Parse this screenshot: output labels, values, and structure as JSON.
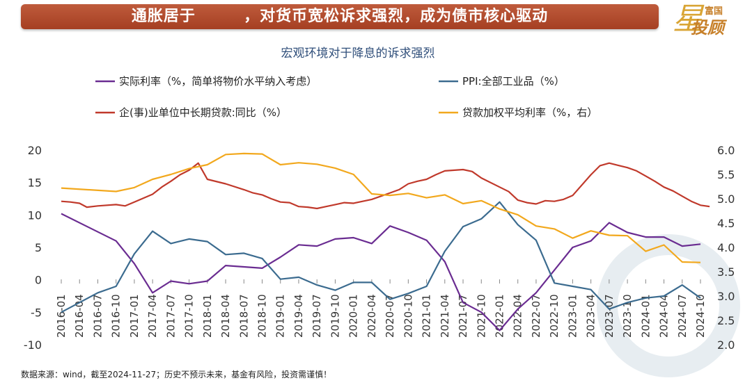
{
  "banner": {
    "title": "通胀居于        ，对货币宽松诉求强烈，成为债市核心驱动"
  },
  "logo": {
    "top": "富国",
    "bottom": "投顾",
    "star": "星"
  },
  "chart_data": {
    "type": "line",
    "title": "宏观环境对于降息的诉求强烈",
    "x_labels": [
      "2016-01",
      "2016-04",
      "2016-07",
      "2016-10",
      "2017-01",
      "2017-04",
      "2017-07",
      "2017-10",
      "2018-01",
      "2018-04",
      "2018-07",
      "2018-10",
      "2019-01",
      "2019-04",
      "2019-07",
      "2019-10",
      "2020-01",
      "2020-04",
      "2020-07",
      "2020-10",
      "2021-01",
      "2021-04",
      "2021-07",
      "2021-10",
      "2022-01",
      "2022-04",
      "2022-07",
      "2022-10",
      "2023-01",
      "2023-04",
      "2023-07",
      "2023-10",
      "2024-01",
      "2024-04",
      "2024-07",
      "2024-10"
    ],
    "left_axis": {
      "ylim": [
        -10,
        20
      ],
      "ticks": [
        "-10",
        "-5",
        "0",
        "5",
        "10",
        "15",
        "20"
      ]
    },
    "right_axis": {
      "ylim": [
        2.0,
        6.0
      ],
      "ticks": [
        "2.0",
        "2.5",
        "3.0",
        "3.5",
        "4.0",
        "4.5",
        "5.0",
        "5.5",
        "6.0"
      ]
    },
    "legend": [
      {
        "label": "实际利率（%，简单将物价水平纳入考虑）",
        "color": "#6a2c91"
      },
      {
        "label": "PPI:全部工业品（%）",
        "color": "#3b6b8f"
      },
      {
        "label": "企(事)业单位中长期贷款:同比（%）",
        "color": "#c0392b"
      },
      {
        "label": "贷款加权平均利率（%，右）",
        "color": "#f2a81d"
      }
    ],
    "series": [
      {
        "name": "实际利率（%，简单将物价水平纳入考虑）",
        "axis": "left",
        "color": "#6a2c91",
        "points": [
          [
            0,
            10.2
          ],
          [
            3,
            6.0
          ],
          [
            4,
            2.5
          ],
          [
            5,
            -2.0
          ],
          [
            6,
            -0.2
          ],
          [
            7,
            -0.6
          ],
          [
            8,
            -0.2
          ],
          [
            9,
            2.2
          ],
          [
            10,
            2.0
          ],
          [
            11,
            1.8
          ],
          [
            12,
            3.5
          ],
          [
            13,
            5.4
          ],
          [
            14,
            5.2
          ],
          [
            15,
            6.3
          ],
          [
            16,
            6.5
          ],
          [
            17,
            5.6
          ],
          [
            18,
            8.3
          ],
          [
            19,
            7.3
          ],
          [
            20,
            6.1
          ],
          [
            21,
            2.8
          ],
          [
            22,
            -3.5
          ],
          [
            23,
            -5.0
          ],
          [
            24,
            -7.8
          ],
          [
            25,
            -4.5
          ],
          [
            26,
            -2.0
          ],
          [
            27,
            1.5
          ],
          [
            28,
            5.0
          ],
          [
            29,
            6.0
          ],
          [
            30,
            8.8
          ],
          [
            31,
            7.3
          ],
          [
            32,
            6.6
          ],
          [
            33,
            6.6
          ],
          [
            34,
            5.2
          ],
          [
            35,
            5.5
          ]
        ]
      },
      {
        "name": "PPI:全部工业品（%）",
        "axis": "left",
        "color": "#3b6b8f",
        "points": [
          [
            0,
            -5.0
          ],
          [
            1,
            -3.5
          ],
          [
            2,
            -2.0
          ],
          [
            3,
            -1.0
          ],
          [
            4,
            4.0
          ],
          [
            5,
            7.5
          ],
          [
            6,
            5.6
          ],
          [
            7,
            6.3
          ],
          [
            8,
            5.9
          ],
          [
            9,
            3.9
          ],
          [
            10,
            4.1
          ],
          [
            11,
            3.3
          ],
          [
            12,
            0.1
          ],
          [
            13,
            0.4
          ],
          [
            14,
            -0.8
          ],
          [
            15,
            -1.6
          ],
          [
            16,
            -0.4
          ],
          [
            17,
            -0.4
          ],
          [
            18,
            -3.0
          ],
          [
            19,
            -2.1
          ],
          [
            20,
            -1.0
          ],
          [
            21,
            4.4
          ],
          [
            22,
            8.2
          ],
          [
            23,
            9.4
          ],
          [
            24,
            12.0
          ],
          [
            25,
            8.5
          ],
          [
            26,
            6.1
          ],
          [
            27,
            -0.5
          ],
          [
            28,
            -1.0
          ],
          [
            29,
            -1.5
          ],
          [
            30,
            -4.5
          ],
          [
            31,
            -3.5
          ],
          [
            32,
            -2.8
          ],
          [
            33,
            -2.5
          ],
          [
            34,
            -0.8
          ],
          [
            35,
            -2.8
          ]
        ]
      },
      {
        "name": "企(事)业单位中长期贷款:同比（%）",
        "axis": "left",
        "color": "#c0392b",
        "points": [
          [
            0,
            12.1
          ],
          [
            0.5,
            12.0
          ],
          [
            1,
            11.8
          ],
          [
            1.4,
            11.2
          ],
          [
            2,
            11.4
          ],
          [
            3,
            11.6
          ],
          [
            3.5,
            11.4
          ],
          [
            4,
            12.0
          ],
          [
            4.5,
            12.6
          ],
          [
            5,
            13.2
          ],
          [
            5.5,
            14.3
          ],
          [
            6,
            15.2
          ],
          [
            6.5,
            16.2
          ],
          [
            7,
            16.9
          ],
          [
            7.5,
            18.0
          ],
          [
            8,
            15.5
          ],
          [
            9,
            14.8
          ],
          [
            10,
            13.9
          ],
          [
            10.5,
            13.4
          ],
          [
            11,
            13.1
          ],
          [
            11.5,
            12.5
          ],
          [
            12,
            12.0
          ],
          [
            12.5,
            11.9
          ],
          [
            13,
            11.3
          ],
          [
            13.5,
            11.2
          ],
          [
            14,
            11.0
          ],
          [
            14.5,
            11.3
          ],
          [
            15,
            11.6
          ],
          [
            15.5,
            11.9
          ],
          [
            16,
            11.8
          ],
          [
            17,
            12.4
          ],
          [
            17.5,
            12.9
          ],
          [
            18,
            13.4
          ],
          [
            18.5,
            13.9
          ],
          [
            19,
            14.8
          ],
          [
            19.5,
            15.2
          ],
          [
            20,
            15.5
          ],
          [
            20.5,
            16.2
          ],
          [
            21,
            16.8
          ],
          [
            22,
            17.0
          ],
          [
            22.5,
            16.7
          ],
          [
            23,
            15.7
          ],
          [
            24,
            14.3
          ],
          [
            24.5,
            13.6
          ],
          [
            25,
            12.3
          ],
          [
            25.5,
            11.9
          ],
          [
            26,
            11.7
          ],
          [
            26.5,
            12.2
          ],
          [
            27,
            12.1
          ],
          [
            27.5,
            12.4
          ],
          [
            28,
            13.0
          ],
          [
            29,
            16.2
          ],
          [
            29.5,
            17.6
          ],
          [
            30,
            18.0
          ],
          [
            31,
            17.3
          ],
          [
            31.5,
            16.8
          ],
          [
            32,
            16.0
          ],
          [
            32.5,
            15.2
          ],
          [
            33,
            14.3
          ],
          [
            33.5,
            13.7
          ],
          [
            34,
            12.9
          ],
          [
            34.5,
            12.1
          ],
          [
            35,
            11.5
          ],
          [
            35.5,
            11.3
          ]
        ]
      },
      {
        "name": "贷款加权平均利率（%，右）",
        "axis": "right",
        "color": "#f2a81d",
        "points": [
          [
            0,
            5.22
          ],
          [
            3,
            5.15
          ],
          [
            4,
            5.23
          ],
          [
            5,
            5.4
          ],
          [
            6,
            5.5
          ],
          [
            7,
            5.62
          ],
          [
            8,
            5.7
          ],
          [
            9,
            5.91
          ],
          [
            10,
            5.93
          ],
          [
            11,
            5.92
          ],
          [
            12,
            5.7
          ],
          [
            13,
            5.74
          ],
          [
            14,
            5.71
          ],
          [
            15,
            5.63
          ],
          [
            16,
            5.5
          ],
          [
            17,
            5.1
          ],
          [
            18,
            5.07
          ],
          [
            19,
            5.11
          ],
          [
            20,
            5.02
          ],
          [
            21,
            5.08
          ],
          [
            22,
            4.9
          ],
          [
            23,
            4.96
          ],
          [
            24,
            4.79
          ],
          [
            25,
            4.67
          ],
          [
            26,
            4.44
          ],
          [
            27,
            4.38
          ],
          [
            28,
            4.19
          ],
          [
            29,
            4.34
          ],
          [
            30,
            4.25
          ],
          [
            31,
            4.24
          ],
          [
            32,
            3.92
          ],
          [
            33,
            4.05
          ],
          [
            34,
            3.7
          ],
          [
            35,
            3.69
          ]
        ]
      }
    ]
  },
  "source": {
    "text": "数据来源：wind，截至2024-11-27；历史不预示未来，基金有风险，投资需谨慎！"
  }
}
